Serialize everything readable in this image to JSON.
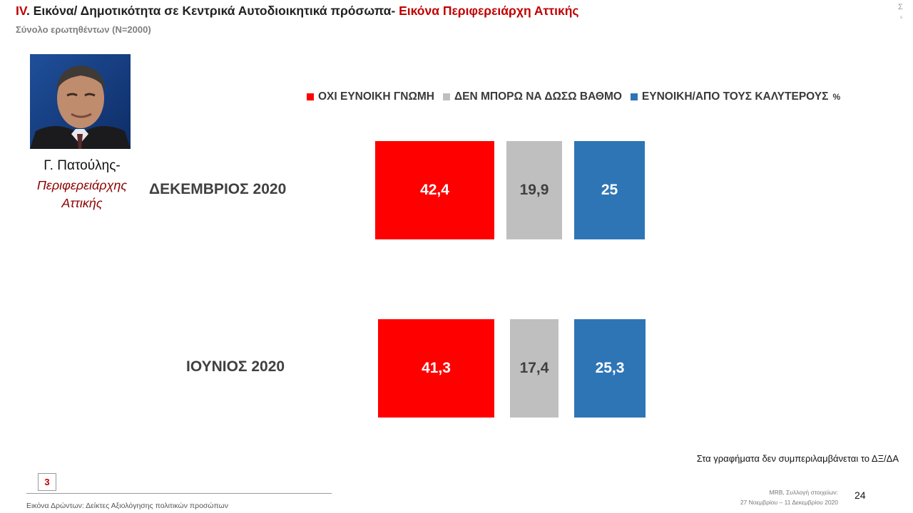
{
  "header": {
    "roman": "IV",
    "title_main": ". Εικόνα/ Δημοτικότητα σε Κεντρικά Αυτοδιοικητικά πρόσωπα- ",
    "title_accent": "Εικόνα Περιφερειάρχη Αττικής",
    "subtitle": "Σύνολο ερωτηθέντων (N=2000)",
    "corner_mark": "Σ",
    "corner_sub": "s"
  },
  "person": {
    "name": "Γ. Πατούλης-",
    "role_line1": "Περιφερειάρχης",
    "role_line2": "Αττικής"
  },
  "chart_data": {
    "type": "bar",
    "unit": "%",
    "categories": [
      "ΔΕΚΕΜΒΡΙΟΣ 2020",
      "ΙΟΥΝΙΟΣ 2020"
    ],
    "series": [
      {
        "name": "ΟΧΙ ΕΥΝΟΙΚΗ ΓΝΩΜΗ",
        "color": "#ff0000",
        "label_color": "#ffffff",
        "values": [
          42.4,
          41.3
        ],
        "labels": [
          "42,4",
          "41,3"
        ]
      },
      {
        "name": "ΔΕΝ ΜΠΟΡΩ ΝΑ ΔΩΣΩ ΒΑΘΜΟ",
        "color": "#bfbfbf",
        "label_color": "#404040",
        "values": [
          19.9,
          17.4
        ],
        "labels": [
          "19,9",
          "17,4"
        ]
      },
      {
        "name": "ΕΥΝΟΙΚΗ/ΑΠΟ ΤΟΥΣ ΚΑΛΥΤΕΡΟΥΣ",
        "color": "#2e75b6",
        "label_color": "#ffffff",
        "values": [
          25,
          25.3
        ],
        "labels": [
          "25",
          "25,3"
        ]
      }
    ],
    "legend_position": "top"
  },
  "footer": {
    "note": "Στα γραφήματα δεν συμπεριλαμβάνεται το ΔΞ/ΔΑ",
    "section_number": "3",
    "left_text": "Εικόνα Δρώντων: Δείκτες Αξιολόγησης πολιτικών προσώπων",
    "source_line1": "MRB, Συλλογή στοιχείων:",
    "source_line2": "27 Νοεμβρίου –  11 Δεκεμβρίου 2020",
    "page_number": "24"
  }
}
